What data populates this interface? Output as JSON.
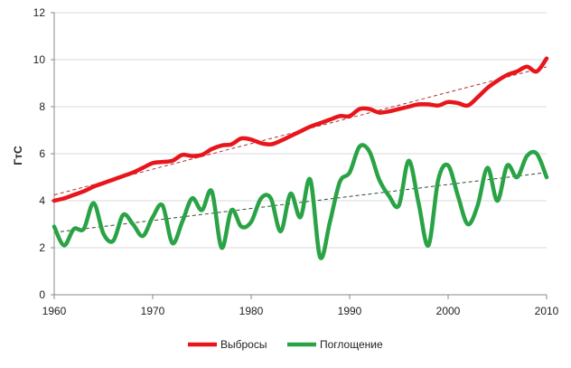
{
  "chart_data": {
    "type": "line",
    "title": "",
    "xlabel": "",
    "ylabel": "ГтС",
    "xlim": [
      1960,
      2010
    ],
    "ylim": [
      0,
      12
    ],
    "x_ticks": [
      "1960",
      "1970",
      "1980",
      "1990",
      "2000",
      "2010"
    ],
    "y_ticks": [
      "0",
      "2",
      "4",
      "6",
      "8",
      "10",
      "12"
    ],
    "grid": "horizontal",
    "legend_position": "bottom",
    "x": [
      1960,
      1961,
      1962,
      1963,
      1964,
      1965,
      1966,
      1967,
      1968,
      1969,
      1970,
      1971,
      1972,
      1973,
      1974,
      1975,
      1976,
      1977,
      1978,
      1979,
      1980,
      1981,
      1982,
      1983,
      1984,
      1985,
      1986,
      1987,
      1988,
      1989,
      1990,
      1991,
      1992,
      1993,
      1994,
      1995,
      1996,
      1997,
      1998,
      1999,
      2000,
      2001,
      2002,
      2003,
      2004,
      2005,
      2006,
      2007,
      2008,
      2009,
      2010
    ],
    "series": [
      {
        "name": "Выбросы",
        "color": "#e8151b",
        "values": [
          4.0,
          4.1,
          4.25,
          4.4,
          4.6,
          4.75,
          4.9,
          5.05,
          5.2,
          5.4,
          5.6,
          5.65,
          5.7,
          5.95,
          5.9,
          5.95,
          6.2,
          6.35,
          6.4,
          6.65,
          6.6,
          6.45,
          6.4,
          6.55,
          6.75,
          6.95,
          7.15,
          7.3,
          7.45,
          7.6,
          7.6,
          7.9,
          7.9,
          7.75,
          7.8,
          7.9,
          8.0,
          8.1,
          8.1,
          8.05,
          8.2,
          8.15,
          8.05,
          8.4,
          8.8,
          9.1,
          9.35,
          9.5,
          9.7,
          9.5,
          10.05
        ],
        "trend": [
          4.25,
          9.7
        ]
      },
      {
        "name": "Поглощение",
        "color": "#2aa346",
        "values": [
          2.9,
          2.1,
          2.8,
          2.8,
          3.9,
          2.6,
          2.3,
          3.4,
          3.0,
          2.5,
          3.3,
          3.8,
          2.2,
          3.1,
          4.1,
          3.6,
          4.4,
          2.0,
          3.6,
          2.9,
          3.1,
          4.1,
          4.1,
          2.7,
          4.3,
          3.3,
          4.9,
          1.6,
          3.1,
          4.8,
          5.2,
          6.3,
          6.1,
          4.9,
          4.2,
          3.8,
          5.7,
          3.9,
          2.1,
          4.9,
          5.5,
          4.2,
          3.0,
          3.8,
          5.4,
          4.0,
          5.5,
          5.0,
          5.9,
          6.0,
          5.0
        ],
        "trend": [
          2.65,
          5.2
        ]
      }
    ]
  }
}
